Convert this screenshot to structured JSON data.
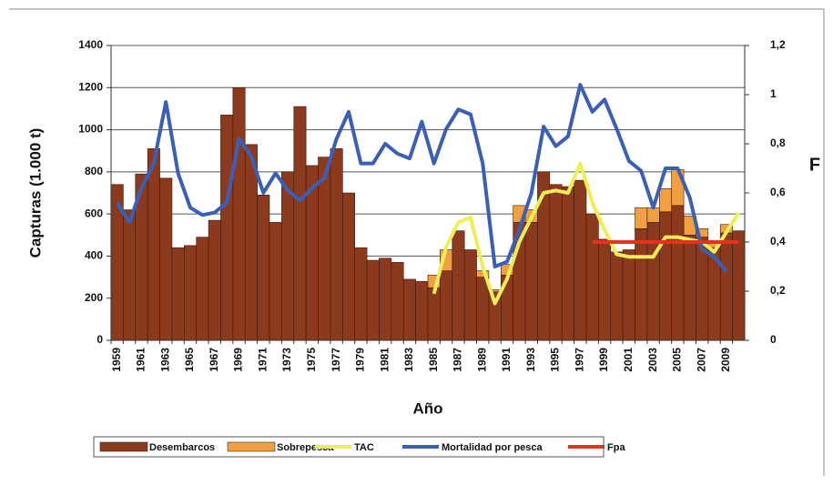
{
  "chart_data": {
    "type": "bar",
    "x_label": "Año",
    "y_label": "Capturas (1.000 t)",
    "y2_label": "F",
    "categories": [
      "1959",
      null,
      "1961",
      null,
      "1963",
      null,
      "1965",
      null,
      "1967",
      null,
      "1969",
      null,
      "1971",
      null,
      "1973",
      null,
      "1975",
      null,
      "1977",
      null,
      "1979",
      null,
      "1981",
      null,
      "1983",
      null,
      "1985",
      null,
      "1987",
      null,
      "1989",
      null,
      "1991",
      null,
      "1993",
      null,
      "1995",
      null,
      "1997",
      null,
      "1999",
      null,
      "2001",
      null,
      "2003",
      null,
      "2005",
      null,
      "2007",
      null,
      "2009",
      null
    ],
    "ylim": [
      0,
      1400
    ],
    "yticks": [
      0,
      200,
      400,
      600,
      800,
      1000,
      1200,
      1400
    ],
    "y2lim": [
      0,
      1.2
    ],
    "y2ticks": [
      0,
      {
        "value": 0.2,
        "label": "0,2"
      },
      {
        "value": 0.4,
        "label": "0,4"
      },
      {
        "value": 0.6,
        "label": "0,6"
      },
      {
        "value": 0.8,
        "label": "0,8"
      },
      1,
      {
        "value": 1.2,
        "label": "1,2"
      }
    ],
    "grid": true,
    "series": [
      {
        "name": "Desembarcos",
        "type": "bar",
        "color": "#8b3a1e",
        "values": [
          740,
          620,
          790,
          910,
          770,
          440,
          450,
          490,
          570,
          1070,
          1200,
          930,
          690,
          560,
          800,
          1110,
          830,
          870,
          910,
          700,
          440,
          380,
          390,
          370,
          290,
          280,
          250,
          330,
          520,
          430,
          300,
          230,
          310,
          560,
          560,
          800,
          740,
          730,
          760,
          600,
          480,
          420,
          430,
          530,
          560,
          610,
          640,
          500,
          490,
          440,
          510,
          520
        ]
      },
      {
        "name": "Sobrepesca",
        "type": "bar",
        "color": "#f0a040",
        "values": [
          0,
          0,
          0,
          0,
          0,
          0,
          0,
          0,
          0,
          0,
          0,
          0,
          0,
          0,
          0,
          0,
          0,
          0,
          0,
          0,
          0,
          0,
          0,
          0,
          0,
          0,
          60,
          100,
          0,
          0,
          30,
          10,
          50,
          80,
          60,
          0,
          0,
          0,
          0,
          0,
          0,
          0,
          0,
          100,
          70,
          110,
          170,
          90,
          40,
          30,
          40,
          0
        ]
      },
      {
        "name": "TAC",
        "type": "line",
        "axis": "y2",
        "color": "#eeee55",
        "values": [
          null,
          null,
          null,
          null,
          null,
          null,
          null,
          null,
          null,
          null,
          null,
          null,
          null,
          null,
          null,
          null,
          null,
          null,
          null,
          null,
          null,
          null,
          null,
          null,
          null,
          null,
          0.19,
          0.38,
          0.48,
          0.5,
          0.3,
          0.15,
          0.25,
          0.4,
          0.5,
          0.6,
          0.61,
          0.6,
          0.72,
          0.56,
          0.45,
          0.35,
          0.34,
          0.34,
          0.34,
          0.42,
          0.42,
          0.41,
          0.4,
          0.36,
          0.44,
          0.52
        ]
      },
      {
        "name": "Mortalidad por pesca",
        "type": "line",
        "axis": "y2",
        "color": "#3a5fb8",
        "values": [
          0.56,
          0.48,
          0.62,
          0.72,
          0.97,
          0.68,
          0.54,
          0.51,
          0.52,
          0.56,
          0.82,
          0.75,
          0.6,
          0.68,
          0.61,
          0.57,
          0.62,
          0.66,
          0.82,
          0.93,
          0.72,
          0.72,
          0.8,
          0.76,
          0.74,
          0.89,
          0.72,
          0.86,
          0.94,
          0.92,
          0.72,
          0.3,
          0.32,
          0.45,
          0.6,
          0.87,
          0.79,
          0.83,
          1.04,
          0.93,
          0.98,
          0.86,
          0.73,
          0.69,
          0.54,
          0.7,
          0.7,
          0.58,
          0.37,
          0.34,
          0.28,
          null
        ]
      },
      {
        "name": "Fpa",
        "type": "line",
        "axis": "y2",
        "color": "#e83020",
        "values": [
          null,
          null,
          null,
          null,
          null,
          null,
          null,
          null,
          null,
          null,
          null,
          null,
          null,
          null,
          null,
          null,
          null,
          null,
          null,
          null,
          null,
          null,
          null,
          null,
          null,
          null,
          null,
          null,
          null,
          null,
          null,
          null,
          null,
          null,
          null,
          null,
          null,
          null,
          null,
          0.4,
          0.4,
          0.4,
          0.4,
          0.4,
          0.4,
          0.4,
          0.4,
          0.4,
          0.4,
          0.4,
          0.4,
          0.4
        ]
      }
    ]
  }
}
